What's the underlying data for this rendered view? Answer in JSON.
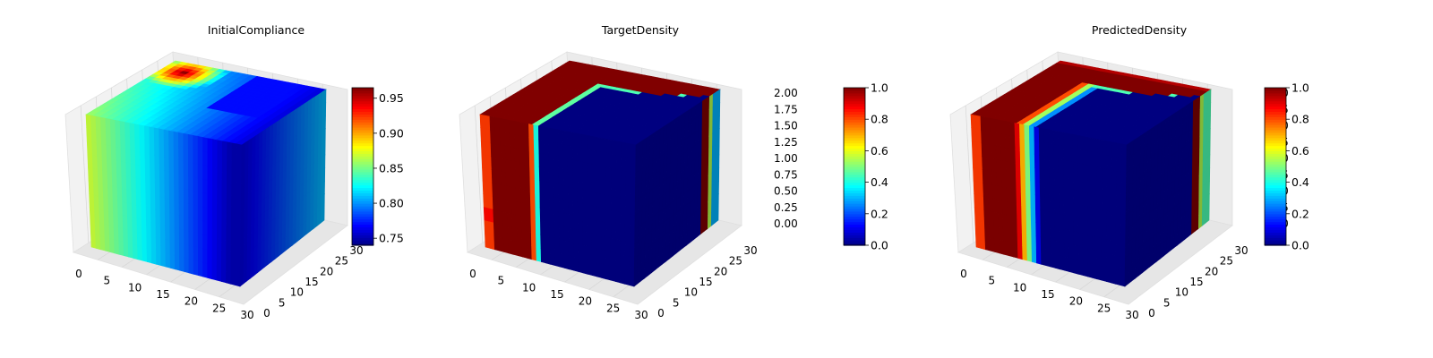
{
  "chart_data": [
    {
      "type": "3d-voxel",
      "title": "InitialCompliance",
      "x_ticks": [
        "0",
        "5",
        "10",
        "15",
        "20",
        "25",
        "30"
      ],
      "y_ticks": [
        "0",
        "5",
        "10",
        "15",
        "20",
        "25",
        "30"
      ],
      "z_ticks": [],
      "colorbar": {
        "colormap": "jet",
        "range": [
          0.74,
          0.965
        ],
        "ticks": [
          "0.75",
          "0.80",
          "0.85",
          "0.90",
          "0.95"
        ]
      },
      "field": {
        "front_face": {
          "x": [
            0,
            10,
            20,
            30
          ],
          "values": [
            0.87,
            0.83,
            0.79,
            0.75
          ]
        },
        "right_face": {
          "y": [
            0,
            30
          ],
          "values": [
            0.76,
            0.81
          ]
        },
        "top_hotspot": {
          "value": 0.96,
          "location": "back-left corner"
        },
        "top_cold_region": {
          "value": 0.75,
          "location": "back-right"
        }
      }
    },
    {
      "type": "3d-voxel",
      "title": "TargetDensity",
      "x_ticks": [
        "0",
        "5",
        "10",
        "15",
        "20",
        "25",
        "30"
      ],
      "y_ticks": [
        "0",
        "5",
        "10",
        "15",
        "20",
        "25",
        "30"
      ],
      "z_ticks": [
        "0.00",
        "0.25",
        "0.50",
        "0.75",
        "1.00",
        "1.25",
        "1.50",
        "1.75",
        "2.00"
      ],
      "colorbar": {
        "colormap": "jet",
        "range": [
          0,
          1
        ],
        "ticks": [
          "0.0",
          "0.2",
          "0.4",
          "0.6",
          "0.8",
          "1.0"
        ]
      },
      "field": {
        "solid_region_x": [
          0,
          10
        ],
        "transition_x": [
          10,
          12.5
        ],
        "void_region_x": [
          12.5,
          32
        ],
        "back_wall_density": 1.0,
        "back_right_edge_density": 0.3
      }
    },
    {
      "type": "3d-voxel",
      "title": "PredictedDensity",
      "x_ticks": [
        "0",
        "5",
        "10",
        "15",
        "20",
        "25",
        "30"
      ],
      "y_ticks": [
        "0",
        "5",
        "10",
        "15",
        "20",
        "25",
        "30"
      ],
      "z_ticks": [
        "0.00",
        "0.25",
        "0.50",
        "0.75",
        "1.00",
        "1.25",
        "1.50",
        "1.75",
        "2.00"
      ],
      "colorbar": {
        "colormap": "jet",
        "range": [
          0,
          1
        ],
        "ticks": [
          "0.0",
          "0.2",
          "0.4",
          "0.6",
          "0.8",
          "1.0"
        ]
      },
      "field": {
        "solid_region_x": [
          0,
          9
        ],
        "transition_x": [
          9,
          14
        ],
        "void_region_x": [
          14,
          32
        ],
        "back_wall_density": 0.95,
        "back_right_edge_density": 0.45
      }
    }
  ]
}
